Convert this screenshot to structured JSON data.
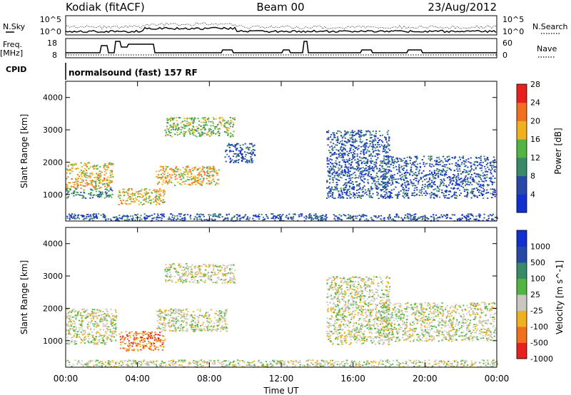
{
  "header": {
    "station": "Kodiak (fitACF)",
    "beam": "Beam 00",
    "date": "23/Aug/2012"
  },
  "top_panels": {
    "nsky_label": "N.Sky",
    "nsky_ticks": [
      "10^5",
      "10^0"
    ],
    "nsearch_label": "N.Search",
    "nsearch_ticks": [
      "10^5",
      "10^0"
    ],
    "freq_label_1": "Freq.",
    "freq_label_2": "[MHz]",
    "freq_ticks": [
      "18",
      "8"
    ],
    "nave_label": "Nave",
    "nave_ticks": [
      "60",
      "0"
    ],
    "cpid_label": "CPID",
    "cpid_text": "normalsound (fast) 157 RF"
  },
  "x_axis": {
    "label": "Time UT",
    "ticks": [
      "00:00",
      "04:00",
      "08:00",
      "12:00",
      "16:00",
      "20:00",
      "00:00"
    ]
  },
  "chart_data": [
    {
      "type": "heatmap",
      "quantity": "Power",
      "ylabel": "Slant Range [km]",
      "xlabel": "",
      "xlim": [
        0,
        24
      ],
      "ylim": [
        180,
        4500
      ],
      "y_ticks": [
        "1000",
        "2000",
        "3000",
        "4000"
      ],
      "colorbar_label": "Power [dB]",
      "colorbar_ticks": [
        "4",
        "8",
        "12",
        "16",
        "20",
        "24",
        "28"
      ],
      "colorbar_colors": [
        "#1030d0",
        "#2848a8",
        "#3a8a6a",
        "#52b442",
        "#f0b020",
        "#f07020",
        "#e82020"
      ],
      "regions": [
        {
          "t": [
            0.0,
            2.6
          ],
          "r": [
            1200,
            2000
          ],
          "level": 4
        },
        {
          "t": [
            0.0,
            2.6
          ],
          "r": [
            900,
            1200
          ],
          "level": 2
        },
        {
          "t": [
            2.9,
            5.5
          ],
          "r": [
            700,
            1200
          ],
          "level": 4
        },
        {
          "t": [
            5.0,
            8.5
          ],
          "r": [
            1300,
            1900
          ],
          "level": 4
        },
        {
          "t": [
            5.5,
            9.4
          ],
          "r": [
            2800,
            3400
          ],
          "level": 3
        },
        {
          "t": [
            8.8,
            10.5
          ],
          "r": [
            2000,
            2600
          ],
          "level": 1
        },
        {
          "t": [
            14.5,
            18.0
          ],
          "r": [
            900,
            3000
          ],
          "level": 1
        },
        {
          "t": [
            17.5,
            23.9
          ],
          "r": [
            900,
            2200
          ],
          "level": 1
        },
        {
          "t": [
            0.0,
            24.0
          ],
          "r": [
            200,
            420
          ],
          "level": 1
        }
      ]
    },
    {
      "type": "heatmap",
      "quantity": "Velocity",
      "ylabel": "Slant Range [km]",
      "xlabel": "Time UT",
      "xlim": [
        0,
        24
      ],
      "ylim": [
        180,
        4500
      ],
      "y_ticks": [
        "1000",
        "2000",
        "3000",
        "4000"
      ],
      "colorbar_label": "Velocity [m s^-1]",
      "colorbar_ticks": [
        "1000",
        "500",
        "100",
        "25",
        "-25",
        "-100",
        "-500",
        "-1000"
      ],
      "colorbar_colors": [
        "#1030d0",
        "#2848a8",
        "#3a8a6a",
        "#52b442",
        "#c8c8c0",
        "#f0b020",
        "#f07020",
        "#e82020"
      ],
      "regions": [
        {
          "t": [
            0.0,
            2.8
          ],
          "r": [
            900,
            2000
          ],
          "level": 4
        },
        {
          "t": [
            2.9,
            5.5
          ],
          "r": [
            700,
            1300
          ],
          "level": 6
        },
        {
          "t": [
            5.0,
            9.0
          ],
          "r": [
            1300,
            2000
          ],
          "level": 4
        },
        {
          "t": [
            5.5,
            9.4
          ],
          "r": [
            2800,
            3400
          ],
          "level": 4
        },
        {
          "t": [
            14.5,
            18.0
          ],
          "r": [
            900,
            3000
          ],
          "level": 4
        },
        {
          "t": [
            17.5,
            23.9
          ],
          "r": [
            1000,
            2200
          ],
          "level": 4
        },
        {
          "t": [
            0.0,
            24.0
          ],
          "r": [
            200,
            420
          ],
          "level": 4
        }
      ]
    }
  ]
}
